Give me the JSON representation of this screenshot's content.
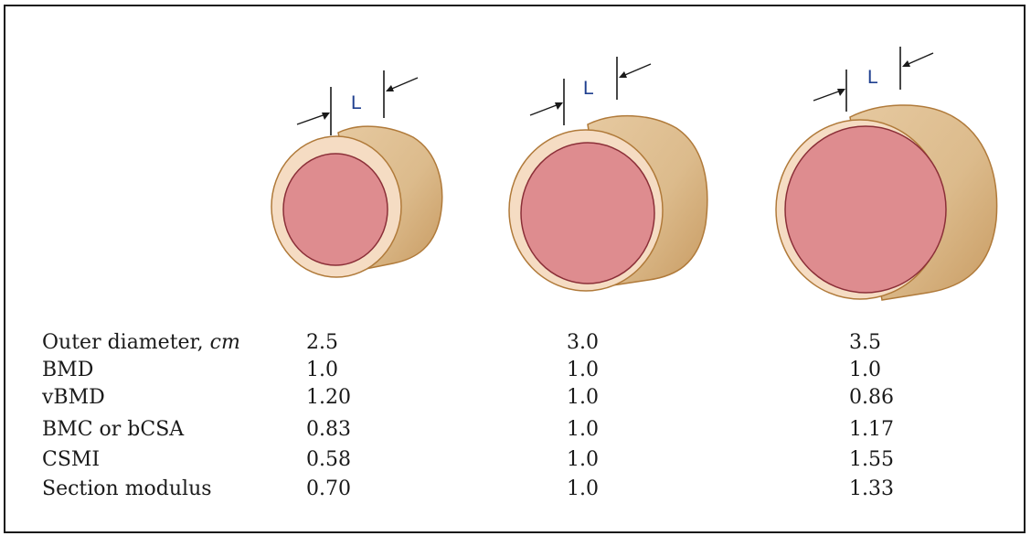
{
  "labels": {
    "L": "L"
  },
  "rows": [
    {
      "label": "Outer diameter, ",
      "unit": "cm",
      "values": [
        "2.5",
        "3.0",
        "3.5"
      ]
    },
    {
      "label": "BMD",
      "unit": "",
      "values": [
        "1.0",
        "1.0",
        "1.0"
      ]
    },
    {
      "label": "vBMD",
      "unit": "",
      "values": [
        "1.20",
        "1.0",
        "0.86"
      ]
    },
    {
      "label": "BMC or bCSA",
      "unit": "",
      "values": [
        "0.83",
        "1.0",
        "1.17"
      ]
    },
    {
      "label": "CSMI",
      "unit": "",
      "values": [
        "0.58",
        "1.0",
        "1.55"
      ]
    },
    {
      "label": "Section modulus",
      "unit": "",
      "values": [
        "0.70",
        "1.0",
        "1.33"
      ]
    }
  ],
  "colors": {
    "cylinder_body": "#d9b98a",
    "cylinder_outline": "#b07a3a",
    "cortex_ring": "#f5dcc3",
    "marrow": "#de8c8f",
    "marrow_outline": "#8b2f38",
    "label_blue": "#1f3f8f"
  }
}
